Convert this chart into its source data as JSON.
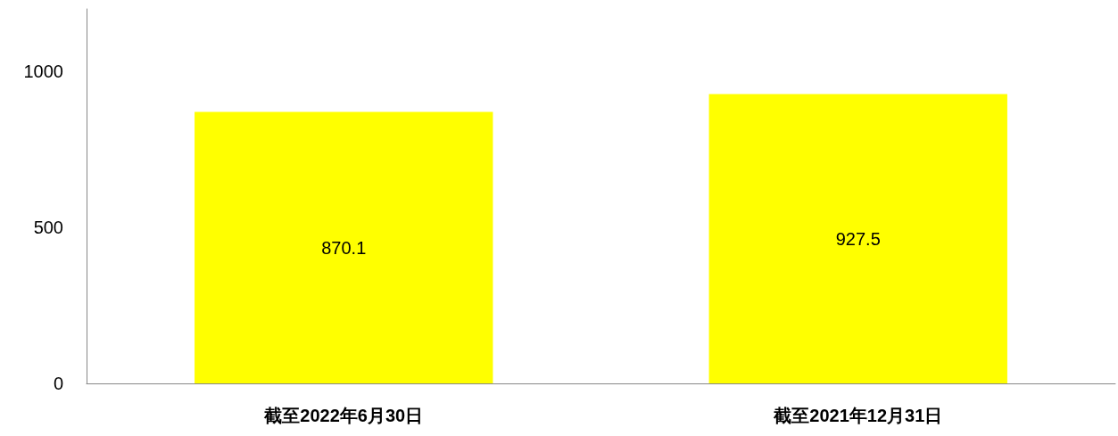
{
  "chart_data": {
    "type": "bar",
    "categories": [
      "截至2022年6月30日",
      "截至2021年12月31日"
    ],
    "values": [
      870.1,
      927.5
    ],
    "color": "#ffff00",
    "ylim": [
      0,
      1200
    ],
    "yticks": [
      0,
      500,
      1000
    ],
    "grid": false,
    "data_labels": true
  }
}
